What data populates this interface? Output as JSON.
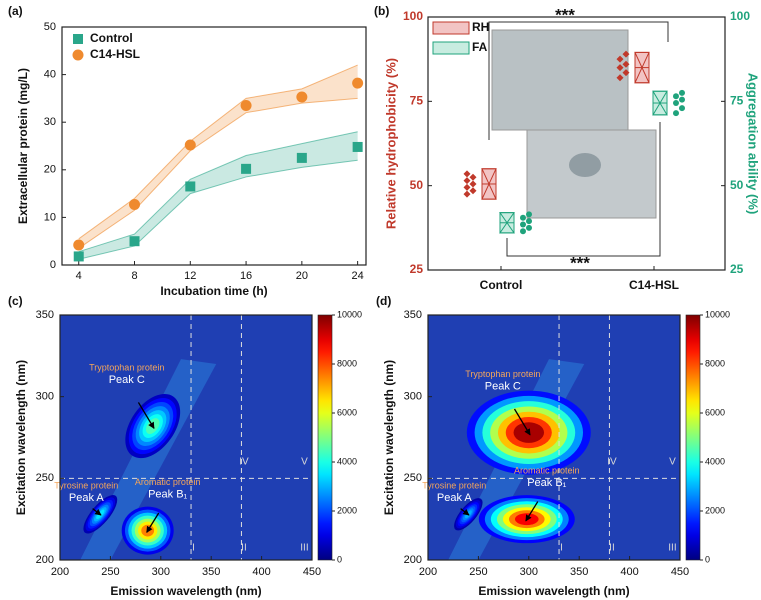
{
  "chart_data": [
    {
      "type": "line",
      "panel_label": "(a)",
      "x": [
        4,
        8,
        12,
        16,
        20,
        24
      ],
      "xlim": [
        2.8,
        24.6
      ],
      "xticks": [
        4,
        8,
        12,
        16,
        20,
        24
      ],
      "ylim": [
        0,
        50
      ],
      "yticks": [
        0,
        10,
        20,
        30,
        40,
        50
      ],
      "xlabel": "Incubation time (h)",
      "ylabel": "Extracellular protein (mg/L)",
      "legend": "upper left",
      "series": [
        {
          "name": "Control",
          "color": "#2aa68a",
          "marker": "square",
          "values": [
            1.8,
            5,
            16.5,
            20.2,
            22.5,
            24.8
          ],
          "lower": [
            1.2,
            4,
            15,
            18.5,
            20.5,
            22
          ],
          "upper": [
            2.8,
            6.5,
            18,
            23,
            25.5,
            28
          ]
        },
        {
          "name": "C14-HSL",
          "color": "#ef8a2e",
          "marker": "circle",
          "values": [
            4.2,
            12.7,
            25.2,
            33.5,
            35.3,
            38.2
          ],
          "lower": [
            3.5,
            11.5,
            24,
            32,
            34,
            35
          ],
          "upper": [
            5.5,
            14,
            26,
            35,
            37,
            42
          ]
        }
      ]
    },
    {
      "type": "dotbox",
      "panel_label": "(b)",
      "categories": [
        "Control",
        "C14-HSL"
      ],
      "ylim": [
        25,
        100
      ],
      "yticks": [
        25,
        50,
        75,
        100
      ],
      "y2lim": [
        25,
        100
      ],
      "y2ticks": [
        25,
        50,
        75,
        100
      ],
      "ylabel": "Relative hydrophobicity (%)",
      "y2label": "Aggregation ability (%)",
      "significance": [
        "***",
        "***"
      ],
      "series": [
        {
          "name": "RH",
          "axis": "y",
          "color": "#c0392b",
          "fill": "#f2c4c4",
          "mean": [
            50.5,
            85
          ],
          "sd": [
            4.5,
            4.5
          ],
          "points": [
            [
              47.5,
              48.5,
              49.5,
              50.5,
              51.5,
              52.5,
              53.5
            ],
            [
              82,
              83.5,
              85,
              86,
              87.5,
              89
            ]
          ]
        },
        {
          "name": "FA",
          "axis": "y2",
          "color": "#1fa37c",
          "fill": "#c8ece0",
          "mean": [
            39,
            74.5
          ],
          "sd": [
            3,
            3.5
          ],
          "points": [
            [
              36.5,
              37.5,
              38.5,
              39.5,
              40.5,
              41.5
            ],
            [
              71.5,
              73,
              74.5,
              75.5,
              76.5,
              77.5
            ]
          ]
        }
      ]
    },
    {
      "type": "contour",
      "panel_label": "(c)",
      "xlim": [
        200,
        450
      ],
      "xticks": [
        200,
        250,
        300,
        350,
        400,
        450
      ],
      "ylim": [
        200,
        350
      ],
      "yticks": [
        200,
        250,
        300,
        350
      ],
      "zlim": [
        0,
        10000
      ],
      "zticks": [
        0,
        2000,
        4000,
        6000,
        8000,
        10000
      ],
      "xlabel": "Emission wavelength (nm)",
      "ylabel": "Excitation wavelength (nm)",
      "dividers_x": [
        330,
        380
      ],
      "dividers_y": [
        250
      ],
      "regions": [
        "I",
        "II",
        "III",
        "IV",
        "V"
      ],
      "peaks": [
        {
          "name": "Peak A",
          "category": "Tyrosine protein",
          "x": 240,
          "y": 228,
          "z": 3500
        },
        {
          "name": "Peak B₁",
          "category": "Aromatic protein",
          "x": 287,
          "y": 218,
          "z": 7500
        },
        {
          "name": "Peak C",
          "category": "Tryptophan protein",
          "x": 292,
          "y": 282,
          "z": 4500
        }
      ]
    },
    {
      "type": "contour",
      "panel_label": "(d)",
      "xlim": [
        200,
        450
      ],
      "xticks": [
        200,
        250,
        300,
        350,
        400,
        450
      ],
      "ylim": [
        200,
        350
      ],
      "yticks": [
        200,
        250,
        300,
        350
      ],
      "zlim": [
        0,
        10000
      ],
      "zticks": [
        0,
        2000,
        4000,
        6000,
        8000,
        10000
      ],
      "xlabel": "Emission wavelength (nm)",
      "ylabel": "Excitation wavelength (nm)",
      "dividers_x": [
        330,
        380
      ],
      "dividers_y": [
        250
      ],
      "regions": [
        "I",
        "II",
        "III",
        "IV",
        "V"
      ],
      "peaks": [
        {
          "name": "Peak A",
          "category": "Tyrosine protein",
          "x": 240,
          "y": 228,
          "z": 3000
        },
        {
          "name": "Peak B₁",
          "category": "Aromatic protein",
          "x": 298,
          "y": 225,
          "z": 8800
        },
        {
          "name": "Peak C",
          "category": "Tryptophan protein",
          "x": 300,
          "y": 278,
          "z": 9600
        }
      ]
    }
  ]
}
